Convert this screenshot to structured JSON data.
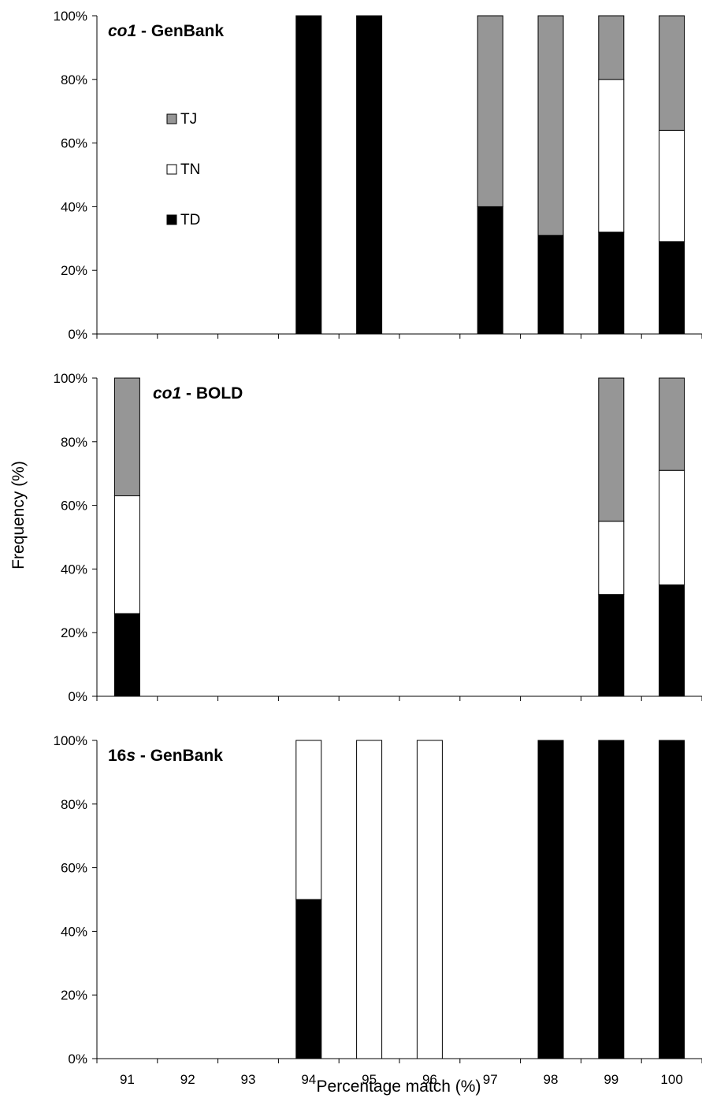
{
  "chart_data": {
    "type": "bar",
    "stacked": true,
    "percent_stacked": true,
    "categories": [
      "91",
      "92",
      "93",
      "94",
      "95",
      "96",
      "97",
      "98",
      "99",
      "100"
    ],
    "xlabel": "Percentage match (%)",
    "ylabel": "Frequency (%)",
    "ylim": [
      0,
      100
    ],
    "yticks": [
      "0%",
      "20%",
      "40%",
      "60%",
      "80%",
      "100%"
    ],
    "legend": {
      "placement": "upper-left inside top panel",
      "entries": [
        {
          "name": "TJ",
          "color": "#969696"
        },
        {
          "name": "TN",
          "color": "#ffffff"
        },
        {
          "name": "TD",
          "color": "#000000"
        }
      ]
    },
    "panels": [
      {
        "title_italic": "co1",
        "title_rest": " - GenBank",
        "series": [
          {
            "name": "TD",
            "color": "#000000",
            "values": [
              0,
              0,
              0,
              100,
              100,
              0,
              40,
              31,
              32,
              29
            ]
          },
          {
            "name": "TN",
            "color": "#ffffff",
            "values": [
              0,
              0,
              0,
              0,
              0,
              0,
              0,
              0,
              48,
              35
            ]
          },
          {
            "name": "TJ",
            "color": "#969696",
            "values": [
              0,
              0,
              0,
              0,
              0,
              0,
              60,
              69,
              20,
              36
            ]
          }
        ]
      },
      {
        "title_italic": "co1",
        "title_rest": " - BOLD",
        "series": [
          {
            "name": "TD",
            "color": "#000000",
            "values": [
              26,
              0,
              0,
              0,
              0,
              0,
              0,
              0,
              32,
              35
            ]
          },
          {
            "name": "TN",
            "color": "#ffffff",
            "values": [
              37,
              0,
              0,
              0,
              0,
              0,
              0,
              0,
              23,
              36
            ]
          },
          {
            "name": "TJ",
            "color": "#969696",
            "values": [
              37,
              0,
              0,
              0,
              0,
              0,
              0,
              0,
              45,
              29
            ]
          }
        ]
      },
      {
        "title_bold": "16",
        "title_italic": "s",
        "title_rest": " - GenBank",
        "series": [
          {
            "name": "TD",
            "color": "#000000",
            "values": [
              0,
              0,
              0,
              50,
              0,
              0,
              0,
              100,
              100,
              100
            ]
          },
          {
            "name": "TN",
            "color": "#ffffff",
            "values": [
              0,
              0,
              0,
              50,
              100,
              100,
              0,
              0,
              0,
              0
            ]
          },
          {
            "name": "TJ",
            "color": "#969696",
            "values": [
              0,
              0,
              0,
              0,
              0,
              0,
              0,
              0,
              0,
              0
            ]
          }
        ]
      }
    ]
  }
}
